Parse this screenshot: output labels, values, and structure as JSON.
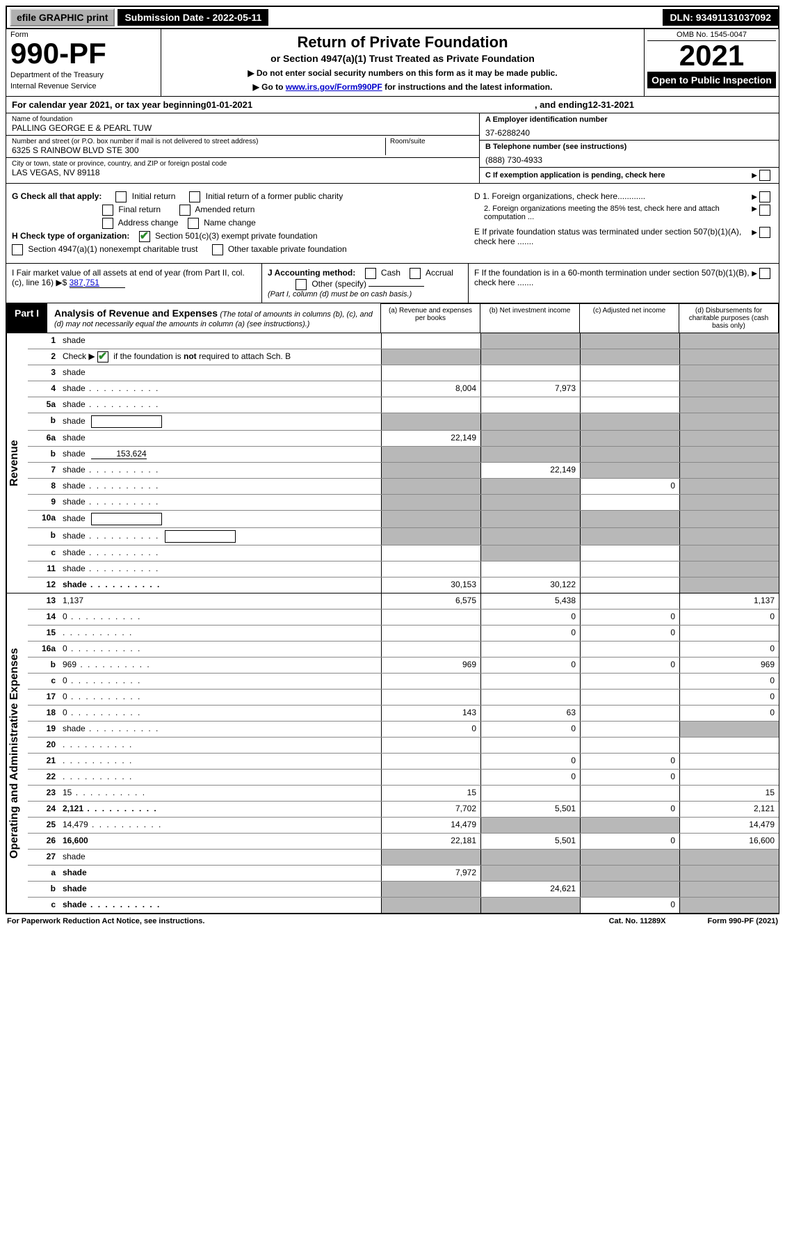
{
  "colors": {
    "black": "#000000",
    "white": "#ffffff",
    "shade": "#b8b8b8",
    "btn_gray": "#b0b0b0",
    "link": "#0000cc",
    "check_green": "#2a8a2a"
  },
  "topbar": {
    "efile": "efile GRAPHIC print",
    "submission": "Submission Date - 2022-05-11",
    "dln": "DLN: 93491131037092"
  },
  "header": {
    "form_label": "Form",
    "form_number": "990-PF",
    "dept1": "Department of the Treasury",
    "dept2": "Internal Revenue Service",
    "title1": "Return of Private Foundation",
    "title2": "or Section 4947(a)(1) Trust Treated as Private Foundation",
    "title3a": "▶ Do not enter social security numbers on this form as it may be made public.",
    "title3b_pre": "▶ Go to ",
    "title3b_link": "www.irs.gov/Form990PF",
    "title3b_post": " for instructions and the latest information.",
    "omb": "OMB No. 1545-0047",
    "year": "2021",
    "open": "Open to Public Inspection"
  },
  "calyear": {
    "prefix": "For calendar year 2021, or tax year beginning ",
    "begin": "01-01-2021",
    "mid": ", and ending ",
    "end": "12-31-2021"
  },
  "info": {
    "name_lbl": "Name of foundation",
    "name_val": "PALLING GEORGE E & PEARL TUW",
    "addr_lbl": "Number and street (or P.O. box number if mail is not delivered to street address)",
    "addr_val": "6325 S RAINBOW BLVD STE 300",
    "room_lbl": "Room/suite",
    "city_lbl": "City or town, state or province, country, and ZIP or foreign postal code",
    "city_val": "LAS VEGAS, NV  89118",
    "ein_lbl": "A Employer identification number",
    "ein_val": "37-6288240",
    "phone_lbl": "B Telephone number (see instructions)",
    "phone_val": "(888) 730-4933",
    "c_lbl": "C If exemption application is pending, check here",
    "d1_lbl": "D 1. Foreign organizations, check here............",
    "d2_lbl": "2. Foreign organizations meeting the 85% test, check here and attach computation ...",
    "e_lbl": "E  If private foundation status was terminated under section 507(b)(1)(A), check here .......",
    "f_lbl": "F  If the foundation is in a 60-month termination under section 507(b)(1)(B), check here .......",
    "g_lbl": "G Check all that apply:",
    "g_initial": "Initial return",
    "g_initial_former": "Initial return of a former public charity",
    "g_final": "Final return",
    "g_amended": "Amended return",
    "g_address": "Address change",
    "g_name": "Name change",
    "h_lbl": "H Check type of organization:",
    "h_501c3": "Section 501(c)(3) exempt private foundation",
    "h_4947": "Section 4947(a)(1) nonexempt charitable trust",
    "h_other": "Other taxable private foundation",
    "i_lbl": "I Fair market value of all assets at end of year (from Part II, col. (c), line 16) ▶$ ",
    "i_val": "387,751",
    "j_lbl": "J Accounting method:",
    "j_cash": "Cash",
    "j_accrual": "Accrual",
    "j_other": "Other (specify)",
    "j_note": "(Part I, column (d) must be on cash basis.)"
  },
  "part1": {
    "label": "Part I",
    "title": "Analysis of Revenue and Expenses",
    "note": "(The total of amounts in columns (b), (c), and (d) may not necessarily equal the amounts in column (a) (see instructions).)",
    "col_a": "(a)   Revenue and expenses per books",
    "col_b": "(b)   Net investment income",
    "col_c": "(c)   Adjusted net income",
    "col_d": "(d)  Disbursements for charitable purposes (cash basis only)"
  },
  "side_labels": {
    "revenue": "Revenue",
    "expenses": "Operating and Administrative Expenses"
  },
  "rows": [
    {
      "n": "1",
      "d": "shade",
      "a": "",
      "b": "shade",
      "c": "shade"
    },
    {
      "n": "2",
      "d": "shade",
      "dots": true,
      "a": "shade",
      "b": "shade",
      "c": "shade",
      "checkbox": true
    },
    {
      "n": "3",
      "d": "shade",
      "a": "",
      "b": "",
      "c": ""
    },
    {
      "n": "4",
      "d": "shade",
      "dots": true,
      "a": "8,004",
      "b": "7,973",
      "c": ""
    },
    {
      "n": "5a",
      "d": "shade",
      "dots": true,
      "a": "",
      "b": "",
      "c": ""
    },
    {
      "n": "b",
      "d": "shade",
      "box": true,
      "a": "shade",
      "b": "shade",
      "c": "shade"
    },
    {
      "n": "6a",
      "d": "shade",
      "a": "22,149",
      "b": "shade",
      "c": "shade"
    },
    {
      "n": "b",
      "d": "shade",
      "inline_val": "153,624",
      "a": "shade",
      "b": "shade",
      "c": "shade"
    },
    {
      "n": "7",
      "d": "shade",
      "dots": true,
      "a": "shade",
      "b": "22,149",
      "c": "shade"
    },
    {
      "n": "8",
      "d": "shade",
      "dots": true,
      "a": "shade",
      "b": "shade",
      "c": "0"
    },
    {
      "n": "9",
      "d": "shade",
      "dots": true,
      "a": "shade",
      "b": "shade",
      "c": ""
    },
    {
      "n": "10a",
      "d": "shade",
      "box": true,
      "a": "shade",
      "b": "shade",
      "c": "shade"
    },
    {
      "n": "b",
      "d": "shade",
      "dots": true,
      "box": true,
      "a": "shade",
      "b": "shade",
      "c": "shade"
    },
    {
      "n": "c",
      "d": "shade",
      "dots": true,
      "a": "",
      "b": "shade",
      "c": ""
    },
    {
      "n": "11",
      "d": "shade",
      "dots": true,
      "a": "",
      "b": "",
      "c": ""
    },
    {
      "n": "12",
      "d": "shade",
      "dots": true,
      "bold": true,
      "a": "30,153",
      "b": "30,122",
      "c": ""
    }
  ],
  "exp_rows": [
    {
      "n": "13",
      "d": "1,137",
      "a": "6,575",
      "b": "5,438",
      "c": ""
    },
    {
      "n": "14",
      "d": "0",
      "dots": true,
      "a": "",
      "b": "0",
      "c": "0"
    },
    {
      "n": "15",
      "d": "",
      "dots": true,
      "a": "",
      "b": "0",
      "c": "0"
    },
    {
      "n": "16a",
      "d": "0",
      "dots": true,
      "a": "",
      "b": "",
      "c": ""
    },
    {
      "n": "b",
      "d": "969",
      "dots": true,
      "a": "969",
      "b": "0",
      "c": "0"
    },
    {
      "n": "c",
      "d": "0",
      "dots": true,
      "a": "",
      "b": "",
      "c": ""
    },
    {
      "n": "17",
      "d": "0",
      "dots": true,
      "a": "",
      "b": "",
      "c": ""
    },
    {
      "n": "18",
      "d": "0",
      "dots": true,
      "a": "143",
      "b": "63",
      "c": ""
    },
    {
      "n": "19",
      "d": "shade",
      "dots": true,
      "a": "0",
      "b": "0",
      "c": ""
    },
    {
      "n": "20",
      "d": "",
      "dots": true,
      "a": "",
      "b": "",
      "c": ""
    },
    {
      "n": "21",
      "d": "",
      "dots": true,
      "a": "",
      "b": "0",
      "c": "0"
    },
    {
      "n": "22",
      "d": "",
      "dots": true,
      "a": "",
      "b": "0",
      "c": "0"
    },
    {
      "n": "23",
      "d": "15",
      "dots": true,
      "a": "15",
      "b": "",
      "c": ""
    },
    {
      "n": "24",
      "d": "2,121",
      "dots": true,
      "bold": true,
      "a": "7,702",
      "b": "5,501",
      "c": "0"
    },
    {
      "n": "25",
      "d": "14,479",
      "dots": true,
      "a": "14,479",
      "b": "shade",
      "c": "shade"
    },
    {
      "n": "26",
      "d": "16,600",
      "bold": true,
      "a": "22,181",
      "b": "5,501",
      "c": "0"
    },
    {
      "n": "27",
      "d": "shade",
      "a": "shade",
      "b": "shade",
      "c": "shade"
    },
    {
      "n": "a",
      "d": "shade",
      "bold": true,
      "a": "7,972",
      "b": "shade",
      "c": "shade"
    },
    {
      "n": "b",
      "d": "shade",
      "bold": true,
      "a": "shade",
      "b": "24,621",
      "c": "shade"
    },
    {
      "n": "c",
      "d": "shade",
      "dots": true,
      "bold": true,
      "a": "shade",
      "b": "shade",
      "c": "0"
    }
  ],
  "footer": {
    "left": "For Paperwork Reduction Act Notice, see instructions.",
    "mid": "Cat. No. 11289X",
    "right": "Form 990-PF (2021)"
  }
}
